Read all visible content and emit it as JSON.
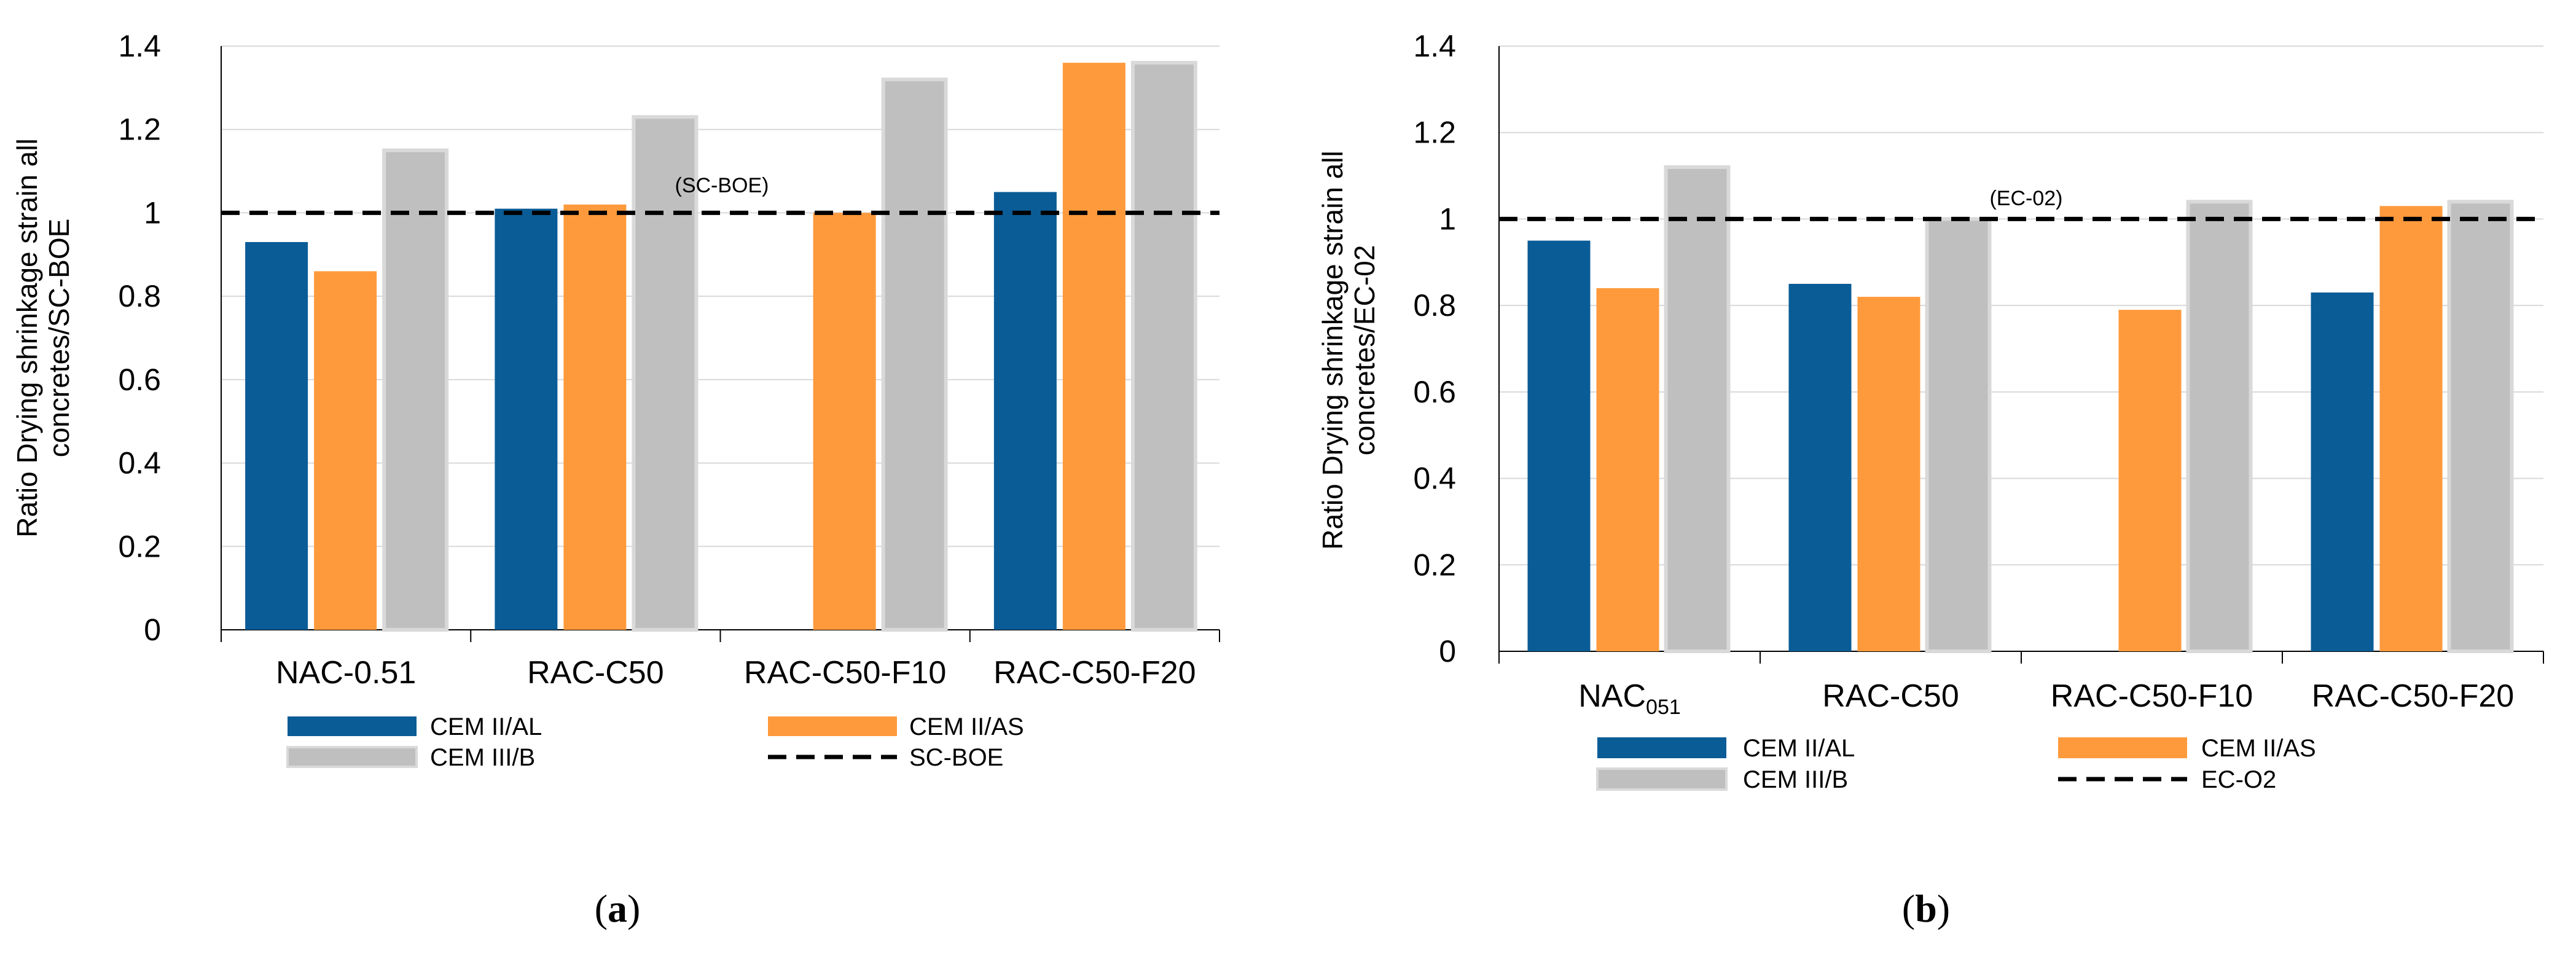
{
  "colors": {
    "cem_ii_al": "#0A5C96",
    "cem_ii_as": "#FF9A3C",
    "cem_iii_b": "#BFBFBF",
    "cem_iii_b_edge": "#D9D9D9",
    "reference": "#000000",
    "grid": "#D9D9D9",
    "axis": "#000000"
  },
  "chart_data": [
    {
      "type": "bar",
      "panel_label": "(a)",
      "ylabel_line1": "Ratio Drying shrinkage strain all",
      "ylabel_line2": "concretes/SC-BOE",
      "ylim": [
        0,
        1.4
      ],
      "yticks": [
        "0",
        "0.2",
        "0.4",
        "0.6",
        "0.8",
        "1",
        "1.2",
        "1.4"
      ],
      "ytick_values": [
        0,
        0.2,
        0.4,
        0.6,
        0.8,
        1.0,
        1.2,
        1.4
      ],
      "categories": [
        "NAC-0.51",
        "RAC-C50",
        "RAC-C50-F10",
        "RAC-C50-F20"
      ],
      "series": [
        {
          "name": "CEM II/AL",
          "values": [
            0.93,
            1.01,
            null,
            1.05
          ]
        },
        {
          "name": "CEM II/AS",
          "values": [
            0.86,
            1.02,
            1.0,
            1.36
          ]
        },
        {
          "name": "CEM III/B",
          "values": [
            1.15,
            1.23,
            1.32,
            1.36
          ]
        }
      ],
      "reference_line": {
        "name": "SC-BOE",
        "value": 1.0,
        "annotation": "(SC-BOE)"
      },
      "legend": [
        "CEM II/AL",
        "CEM II/AS",
        "CEM III/B",
        "SC-BOE"
      ]
    },
    {
      "type": "bar",
      "panel_label": "(b)",
      "ylabel_line1": "Ratio Drying shrinkage strain all",
      "ylabel_line2": "concretes/EC-02",
      "ylim": [
        0,
        1.4
      ],
      "yticks": [
        "0",
        "0.2",
        "0.4",
        "0.6",
        "0.8",
        "1",
        "1.2",
        "1.4"
      ],
      "ytick_values": [
        0,
        0.2,
        0.4,
        0.6,
        0.8,
        1.0,
        1.2,
        1.4
      ],
      "categories": [
        "NAC051",
        "RAC-C50",
        "RAC-C50-F10",
        "RAC-C50-F20"
      ],
      "category_display": [
        {
          "main": "NAC",
          "sub": "051"
        },
        {
          "main": "RAC-C50",
          "sub": ""
        },
        {
          "main": "RAC-C50-F10",
          "sub": ""
        },
        {
          "main": "RAC-C50-F20",
          "sub": ""
        }
      ],
      "series": [
        {
          "name": "CEM II/AL",
          "values": [
            0.95,
            0.85,
            null,
            0.83
          ]
        },
        {
          "name": "CEM II/AS",
          "values": [
            0.84,
            0.82,
            0.79,
            1.03
          ]
        },
        {
          "name": "CEM III/B",
          "values": [
            1.12,
            1.0,
            1.04,
            1.04
          ]
        }
      ],
      "reference_line": {
        "name": "EC-O2",
        "value": 1.0,
        "annotation": "(EC-02)"
      },
      "legend": [
        "CEM II/AL",
        "CEM II/AS",
        "CEM III/B",
        "EC-O2"
      ]
    }
  ]
}
